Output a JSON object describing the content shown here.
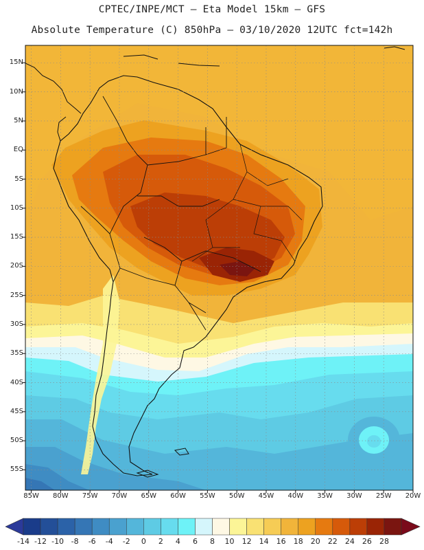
{
  "header": {
    "line1": "CPTEC/INPE/MCT –  Eta Model 15km – GFS",
    "line2": "Absolute Temperature (C) 850hPa – 03/10/2020 12UTC fct=142h"
  },
  "map": {
    "lat_range": [
      -58.5,
      18
    ],
    "lon_range": [
      -86,
      -20
    ],
    "lat_ticks": [
      "15N",
      "10N",
      "5N",
      "EQ",
      "5S",
      "10S",
      "15S",
      "20S",
      "25S",
      "30S",
      "35S",
      "40S",
      "45S",
      "50S",
      "55S"
    ],
    "lat_values": [
      15,
      10,
      5,
      0,
      -5,
      -10,
      -15,
      -20,
      -25,
      -30,
      -35,
      -40,
      -45,
      -50,
      -55
    ],
    "lon_ticks": [
      "85W",
      "80W",
      "75W",
      "70W",
      "65W",
      "60W",
      "55W",
      "50W",
      "45W",
      "40W",
      "35W",
      "30W",
      "25W",
      "20W"
    ],
    "lon_values": [
      -85,
      -80,
      -75,
      -70,
      -65,
      -60,
      -55,
      -50,
      -45,
      -40,
      -35,
      -30,
      -25,
      -20
    ]
  },
  "colorbar": {
    "labels": [
      "-14",
      "-12",
      "-10",
      "-8",
      "-6",
      "-4",
      "-2",
      "0",
      "2",
      "4",
      "6",
      "8",
      "10",
      "12",
      "14",
      "16",
      "18",
      "20",
      "22",
      "24",
      "26",
      "28"
    ],
    "colors": [
      "#1a3c8a",
      "#234f98",
      "#2b62a8",
      "#3576b5",
      "#3f8cc3",
      "#4aa1cf",
      "#54b6da",
      "#5ecbe4",
      "#67dcee",
      "#6ef2f7",
      "#d5f6fc",
      "#fef8e4",
      "#fcf597",
      "#f9e173",
      "#f6cc55",
      "#f1b43a",
      "#eda220",
      "#e67a10",
      "#d65a0a",
      "#bc3e06",
      "#9a2405",
      "#7a1510"
    ],
    "under_color": "#2b3a9a",
    "over_color": "#7a0a1a"
  }
}
